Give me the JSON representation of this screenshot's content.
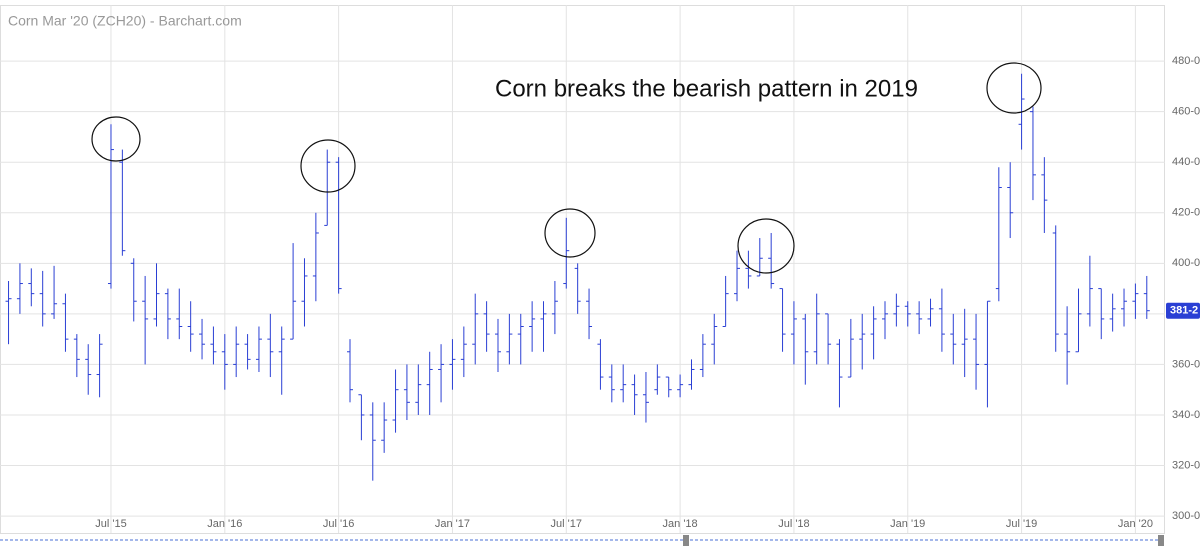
{
  "chart_data": {
    "type": "ohlc",
    "title": "Corn Mar '20 (ZCH20) - Barchart.com",
    "annotation": "Corn breaks the bearish pattern in 2019",
    "color": "#2a3fd4",
    "grid": true,
    "xlim": [
      -0.75,
      101.6
    ],
    "ylim": [
      293.3,
      502.2
    ],
    "yticks": [
      {
        "value": 300,
        "label": "300-0"
      },
      {
        "value": 320,
        "label": "320-0"
      },
      {
        "value": 340,
        "label": "340-0"
      },
      {
        "value": 360,
        "label": "360-0"
      },
      {
        "value": 380,
        "label": "380-0"
      },
      {
        "value": 400,
        "label": "400-0"
      },
      {
        "value": 420,
        "label": "420-0"
      },
      {
        "value": 440,
        "label": "440-0"
      },
      {
        "value": 460,
        "label": "460-0"
      },
      {
        "value": 480,
        "label": "480-0"
      }
    ],
    "xticks": [
      {
        "value": 9,
        "label": "Jul '15"
      },
      {
        "value": 19,
        "label": "Jan '16"
      },
      {
        "value": 29,
        "label": "Jul '16"
      },
      {
        "value": 39,
        "label": "Jan '17"
      },
      {
        "value": 49,
        "label": "Jul '17"
      },
      {
        "value": 59,
        "label": "Jan '18"
      },
      {
        "value": 69,
        "label": "Jul '18"
      },
      {
        "value": 79,
        "label": "Jan '19"
      },
      {
        "value": 89,
        "label": "Jul '19"
      },
      {
        "value": 99,
        "label": "Jan '20"
      }
    ],
    "last_price": {
      "value": 381.25,
      "label": "381-2"
    },
    "open": [
      385,
      386,
      392,
      388,
      380,
      384,
      370,
      362,
      356,
      392,
      440,
      400,
      385,
      378,
      388,
      378,
      375,
      372,
      368,
      365,
      360,
      368,
      362,
      370,
      365,
      370,
      385,
      395,
      415,
      440,
      365,
      348,
      340,
      330,
      338,
      350,
      345,
      352,
      358,
      360,
      362,
      368,
      380,
      372,
      365,
      372,
      375,
      378,
      380,
      392,
      398,
      385,
      368,
      355,
      350,
      352,
      348,
      350,
      355,
      350,
      352,
      358,
      368,
      375,
      388,
      398,
      395,
      402,
      390,
      372,
      378,
      365,
      380,
      368,
      355,
      370,
      372,
      378,
      380,
      383,
      380,
      378,
      382,
      372,
      368,
      370,
      360,
      390,
      430,
      455,
      460,
      435,
      412,
      372,
      365,
      380,
      390,
      378,
      382,
      385,
      388
    ],
    "high": [
      393,
      400,
      398,
      397,
      399,
      388,
      372,
      368,
      372,
      455,
      445,
      402,
      395,
      400,
      390,
      390,
      385,
      378,
      375,
      372,
      375,
      372,
      375,
      380,
      375,
      408,
      402,
      420,
      445,
      442,
      370,
      348,
      345,
      345,
      358,
      360,
      360,
      365,
      368,
      370,
      375,
      388,
      385,
      378,
      380,
      380,
      385,
      385,
      393,
      418,
      400,
      390,
      370,
      360,
      360,
      356,
      357,
      360,
      355,
      356,
      362,
      372,
      380,
      395,
      405,
      405,
      410,
      412,
      390,
      385,
      380,
      388,
      380,
      370,
      378,
      380,
      383,
      385,
      388,
      385,
      385,
      386,
      390,
      380,
      382,
      380,
      385,
      438,
      440,
      475,
      462,
      442,
      415,
      383,
      390,
      403,
      390,
      388,
      390,
      392,
      395
    ],
    "low": [
      368,
      380,
      383,
      375,
      378,
      365,
      355,
      348,
      347,
      390,
      403,
      377,
      360,
      375,
      370,
      370,
      365,
      362,
      360,
      350,
      355,
      358,
      357,
      355,
      348,
      370,
      375,
      385,
      415,
      388,
      345,
      330,
      314,
      325,
      333,
      338,
      340,
      340,
      345,
      350,
      355,
      360,
      365,
      357,
      360,
      360,
      365,
      365,
      372,
      390,
      380,
      370,
      350,
      345,
      345,
      340,
      337,
      348,
      347,
      347,
      350,
      355,
      360,
      375,
      385,
      390,
      395,
      390,
      365,
      360,
      352,
      360,
      360,
      343,
      355,
      358,
      362,
      370,
      375,
      375,
      372,
      375,
      365,
      360,
      355,
      350,
      343,
      385,
      410,
      445,
      425,
      412,
      365,
      352,
      365,
      375,
      370,
      373,
      375,
      378,
      378
    ],
    "close": [
      386,
      392,
      388,
      380,
      384,
      370,
      362,
      356,
      368,
      445,
      405,
      385,
      378,
      388,
      378,
      375,
      372,
      368,
      365,
      360,
      368,
      362,
      370,
      365,
      370,
      385,
      395,
      412,
      440,
      390,
      350,
      340,
      330,
      338,
      350,
      345,
      352,
      358,
      360,
      362,
      368,
      380,
      372,
      365,
      372,
      375,
      378,
      380,
      385,
      405,
      385,
      375,
      355,
      350,
      352,
      348,
      345,
      355,
      350,
      352,
      358,
      368,
      375,
      388,
      398,
      395,
      402,
      392,
      372,
      378,
      365,
      380,
      368,
      355,
      370,
      372,
      378,
      380,
      383,
      380,
      378,
      382,
      372,
      368,
      370,
      360,
      385,
      430,
      420,
      465,
      435,
      425,
      372,
      365,
      380,
      390,
      378,
      382,
      385,
      388,
      381.25
    ]
  }
}
